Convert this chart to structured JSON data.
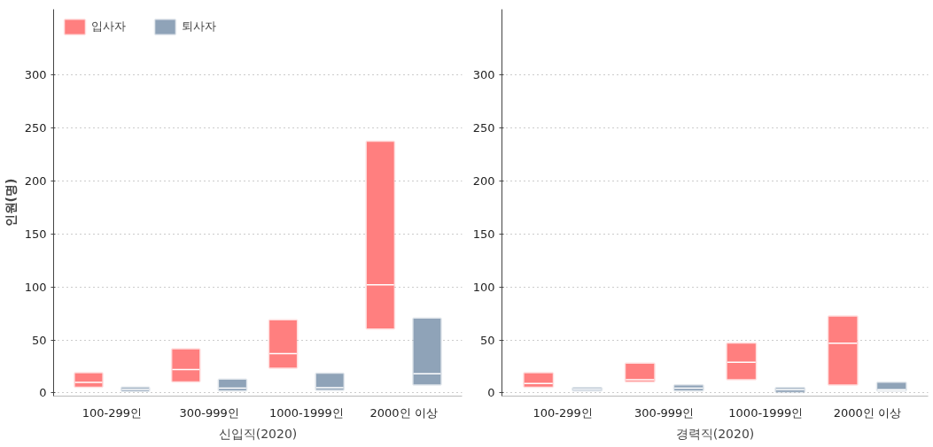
{
  "chart_data": [
    {
      "type": "box",
      "xlabel": "신입직(2020)",
      "ylabel": "인원(명)",
      "categories": [
        "100-299인",
        "300-999인",
        "1000-1999인",
        "2000인 이상"
      ],
      "ylim": [
        -3,
        362
      ],
      "yticks": [
        0,
        50,
        100,
        150,
        200,
        250,
        300
      ],
      "grid": "y",
      "legend": "top left",
      "series": [
        {
          "name": "입사자",
          "color": "#ff7f7f",
          "boxes": [
            {
              "low": 6,
              "q1": 6,
              "median": 10,
              "q3": 18.5,
              "high": 18.5
            },
            {
              "low": 11,
              "q1": 11,
              "median": 22,
              "q3": 41,
              "high": 41
            },
            {
              "low": 24,
              "q1": 24,
              "median": 37,
              "q3": 68.5,
              "high": 68.5
            },
            {
              "low": 61,
              "q1": 61,
              "median": 102,
              "q3": 237,
              "high": 237
            }
          ]
        },
        {
          "name": "퇴사자",
          "color": "#8fa3b8",
          "boxes": [
            {
              "low": 2,
              "q1": 2,
              "median": 3.5,
              "q3": 5,
              "high": 5
            },
            {
              "low": 2.5,
              "q1": 2.5,
              "median": 4.5,
              "q3": 12.5,
              "high": 12.5
            },
            {
              "low": 3,
              "q1": 3,
              "median": 5,
              "q3": 18,
              "high": 18
            },
            {
              "low": 8,
              "q1": 8,
              "median": 18,
              "q3": 70,
              "high": 70
            }
          ]
        }
      ]
    },
    {
      "type": "box",
      "xlabel": "경력직(2020)",
      "categories": [
        "100-299인",
        "300-999인",
        "1000-1999인",
        "2000인 이상"
      ],
      "ylim": [
        -3,
        362
      ],
      "yticks": [
        0,
        50,
        100,
        150,
        200,
        250,
        300
      ],
      "grid": "y",
      "series": [
        {
          "color": "#ff7f7f",
          "boxes": [
            {
              "low": 6,
              "q1": 6,
              "median": 9,
              "q3": 18.5,
              "high": 18.5
            },
            {
              "low": 11,
              "q1": 11,
              "median": 12.5,
              "q3": 27.5,
              "high": 27.5
            },
            {
              "low": 13,
              "q1": 13,
              "median": 29,
              "q3": 46.5,
              "high": 46.5
            },
            {
              "low": 8,
              "q1": 8,
              "median": 47,
              "q3": 72,
              "high": 72
            }
          ]
        },
        {
          "color": "#8fa3b8",
          "boxes": [
            {
              "low": 2.5,
              "q1": 2.5,
              "median": 3.5,
              "q3": 4.5,
              "high": 4.5
            },
            {
              "low": 2.5,
              "q1": 2.5,
              "median": 4.5,
              "q3": 7,
              "high": 7
            },
            {
              "low": 1,
              "q1": 1,
              "median": 3,
              "q3": 4.5,
              "high": 4.5
            },
            {
              "low": 2.5,
              "q1": 2.5,
              "median": 3,
              "q3": 9.5,
              "high": 9.5
            }
          ]
        }
      ]
    }
  ]
}
